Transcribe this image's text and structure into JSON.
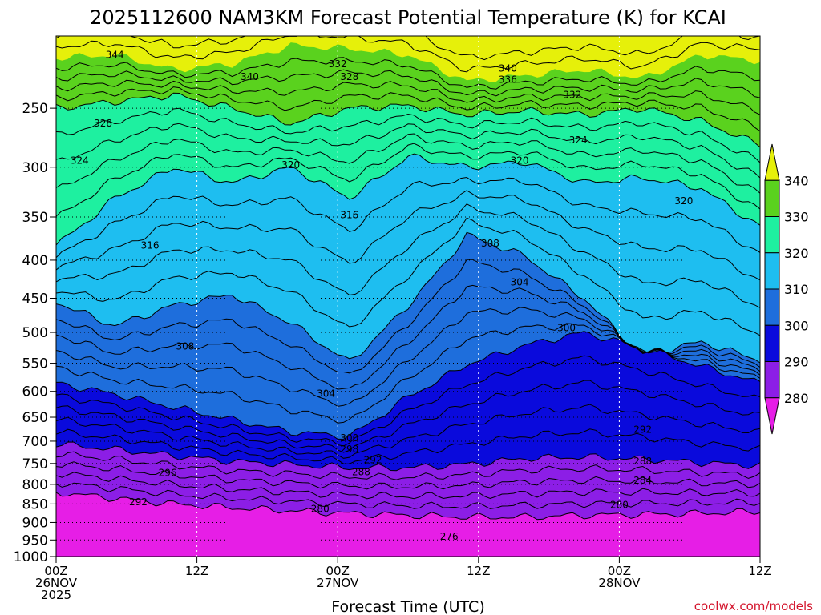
{
  "chart_data": {
    "type": "contour",
    "title": "2025112600 NAM3KM Forecast Potential Temperature (K) for KCAI",
    "xlabel": "Forecast Time (UTC)",
    "ylabel": "",
    "credit": "coolwx.com/models",
    "x_unit": "forecast hour",
    "xlim": [
      0,
      60
    ],
    "y_unit": "hPa",
    "y_scale": "log",
    "ylim": [
      1000,
      200
    ],
    "y_ticks": [
      250,
      300,
      350,
      400,
      450,
      500,
      550,
      600,
      650,
      700,
      750,
      800,
      850,
      900,
      950,
      1000
    ],
    "y_tick_labels": [
      "250",
      "300",
      "350",
      "400",
      "450",
      "500",
      "550",
      "600",
      "650",
      "700",
      "750",
      "800",
      "850",
      "900",
      "950",
      "1000"
    ],
    "x_ticks": [
      {
        "hour": 0,
        "lines": [
          "00Z",
          "26NOV",
          "2025"
        ]
      },
      {
        "hour": 12,
        "lines": [
          "12Z"
        ]
      },
      {
        "hour": 24,
        "lines": [
          "00Z",
          "27NOV"
        ]
      },
      {
        "hour": 36,
        "lines": [
          "12Z"
        ]
      },
      {
        "hour": 48,
        "lines": [
          "00Z",
          "28NOV"
        ]
      },
      {
        "hour": 60,
        "lines": [
          "12Z"
        ]
      }
    ],
    "grid": "dotted",
    "fill_bands": [
      {
        "from": 270,
        "to": 280,
        "color": "#e61ee6"
      },
      {
        "from": 280,
        "to": 290,
        "color": "#8c1ee6"
      },
      {
        "from": 290,
        "to": 300,
        "color": "#0a0adc"
      },
      {
        "from": 300,
        "to": 310,
        "color": "#1e6edc"
      },
      {
        "from": 310,
        "to": 320,
        "color": "#1ebef0"
      },
      {
        "from": 320,
        "to": 330,
        "color": "#1ef0a0"
      },
      {
        "from": 330,
        "to": 340,
        "color": "#5ad21e"
      },
      {
        "from": 340,
        "to": 350,
        "color": "#e6f00a"
      }
    ],
    "contour_interval": 2,
    "band_levels": [
      280,
      290,
      300,
      310,
      320,
      330,
      340
    ],
    "isentropes": [
      {
        "theta": 280,
        "pressures": [
          820,
          835,
          850,
          860,
          868,
          875,
          880,
          885,
          885,
          880,
          878,
          875,
          870
        ]
      },
      {
        "theta": 290,
        "pressures": [
          706,
          718,
          732,
          745,
          752,
          760,
          760,
          752,
          738,
          735,
          740,
          748,
          755
        ]
      },
      {
        "theta": 300,
        "pressures": [
          585,
          605,
          630,
          655,
          680,
          690,
          610,
          552,
          520,
          500,
          525,
          555,
          585
        ]
      },
      {
        "theta": 310,
        "pressures": [
          455,
          490,
          460,
          445,
          485,
          548,
          460,
          370,
          395,
          450,
          535,
          515,
          545
        ]
      },
      {
        "theta": 320,
        "pressures": [
          382,
          330,
          300,
          315,
          300,
          330,
          290,
          300,
          295,
          315,
          310,
          320,
          360
        ]
      },
      {
        "theta": 330,
        "pressures": [
          250,
          245,
          240,
          250,
          262,
          250,
          248,
          255,
          252,
          255,
          250,
          260,
          280
        ]
      },
      {
        "theta": 340,
        "pressures": [
          214,
          212,
          222,
          218,
          206,
          208,
          212,
          230,
          226,
          222,
          228,
          212,
          216
        ]
      }
    ],
    "isentrope_hours": [
      0,
      5,
      10,
      15,
      20,
      25,
      30,
      35,
      40,
      45,
      50,
      55,
      60
    ],
    "contour_labels": [
      {
        "text": "344",
        "hour": 5.0,
        "p": 212
      },
      {
        "text": "340",
        "hour": 16.5,
        "p": 227
      },
      {
        "text": "332",
        "hour": 24.0,
        "p": 218
      },
      {
        "text": "328",
        "hour": 25.0,
        "p": 227
      },
      {
        "text": "340",
        "hour": 38.5,
        "p": 221
      },
      {
        "text": "336",
        "hour": 38.5,
        "p": 229
      },
      {
        "text": "332",
        "hour": 44.0,
        "p": 240
      },
      {
        "text": "328",
        "hour": 4.0,
        "p": 262
      },
      {
        "text": "324",
        "hour": 44.5,
        "p": 276
      },
      {
        "text": "324",
        "hour": 2.0,
        "p": 294
      },
      {
        "text": "320",
        "hour": 20.0,
        "p": 298
      },
      {
        "text": "320",
        "hour": 39.5,
        "p": 294
      },
      {
        "text": "320",
        "hour": 53.5,
        "p": 333
      },
      {
        "text": "316",
        "hour": 8.0,
        "p": 382
      },
      {
        "text": "316",
        "hour": 25.0,
        "p": 348
      },
      {
        "text": "308",
        "hour": 37.0,
        "p": 380
      },
      {
        "text": "304",
        "hour": 39.5,
        "p": 428
      },
      {
        "text": "300",
        "hour": 43.5,
        "p": 493
      },
      {
        "text": "308",
        "hour": 11.0,
        "p": 522
      },
      {
        "text": "304",
        "hour": 23.0,
        "p": 604
      },
      {
        "text": "292",
        "hour": 50.0,
        "p": 675
      },
      {
        "text": "300",
        "hour": 25.0,
        "p": 693
      },
      {
        "text": "298",
        "hour": 25.0,
        "p": 718
      },
      {
        "text": "292",
        "hour": 27.0,
        "p": 742
      },
      {
        "text": "288",
        "hour": 26.0,
        "p": 770
      },
      {
        "text": "296",
        "hour": 9.5,
        "p": 772
      },
      {
        "text": "288",
        "hour": 50.0,
        "p": 745
      },
      {
        "text": "284",
        "hour": 50.0,
        "p": 790
      },
      {
        "text": "292",
        "hour": 7.0,
        "p": 845
      },
      {
        "text": "280",
        "hour": 22.5,
        "p": 863
      },
      {
        "text": "280",
        "hour": 48.0,
        "p": 852
      },
      {
        "text": "276",
        "hour": 33.5,
        "p": 940
      }
    ],
    "ground": {
      "p_top": 1000,
      "color": "#a0522d"
    },
    "legend": {
      "position": "right",
      "levels": [
        "340",
        "330",
        "320",
        "310",
        "300",
        "290",
        "280"
      ],
      "colors": [
        "#e6f00a",
        "#5ad21e",
        "#1ef0a0",
        "#1ebef0",
        "#1e6edc",
        "#0a0adc",
        "#8c1ee6",
        "#e61ee6"
      ]
    }
  }
}
